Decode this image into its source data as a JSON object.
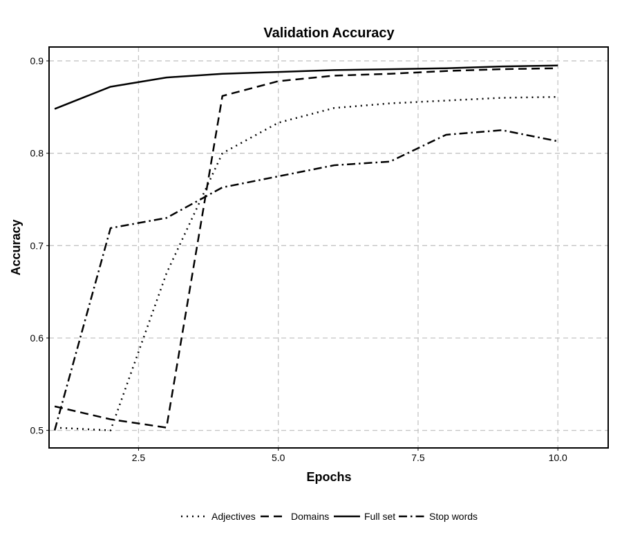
{
  "chart_data": {
    "type": "line",
    "title": "Validation Accuracy",
    "xlabel": "Epochs",
    "ylabel": "Accuracy",
    "xlim": [
      0.9,
      10.9
    ],
    "ylim": [
      0.481,
      0.915
    ],
    "xticks": [
      2.5,
      5.0,
      7.5,
      10.0
    ],
    "xtick_labels": [
      "2.5",
      "5.0",
      "7.5",
      "10.0"
    ],
    "yticks": [
      0.5,
      0.6,
      0.7,
      0.8,
      0.9
    ],
    "ytick_labels": [
      "0.5",
      "0.6",
      "0.7",
      "0.8",
      "0.9"
    ],
    "grid": true,
    "legend_position": "bottom",
    "x": [
      1,
      2,
      3,
      4,
      5,
      6,
      7,
      8,
      9,
      10
    ],
    "series": [
      {
        "name": "Adjectives",
        "style": "dotted",
        "values": [
          0.503,
          0.5,
          0.67,
          0.8,
          0.833,
          0.849,
          0.854,
          0.857,
          0.86,
          0.861
        ]
      },
      {
        "name": "Domains",
        "style": "dashed",
        "values": [
          0.526,
          0.512,
          0.503,
          0.862,
          0.878,
          0.884,
          0.886,
          0.889,
          0.891,
          0.892
        ]
      },
      {
        "name": "Full set",
        "style": "solid",
        "values": [
          0.848,
          0.872,
          0.882,
          0.886,
          0.888,
          0.89,
          0.891,
          0.892,
          0.894,
          0.895
        ]
      },
      {
        "name": "Stop words",
        "style": "dashdot",
        "values": [
          0.5,
          0.719,
          0.73,
          0.763,
          0.775,
          0.787,
          0.791,
          0.82,
          0.825,
          0.813
        ]
      }
    ]
  }
}
